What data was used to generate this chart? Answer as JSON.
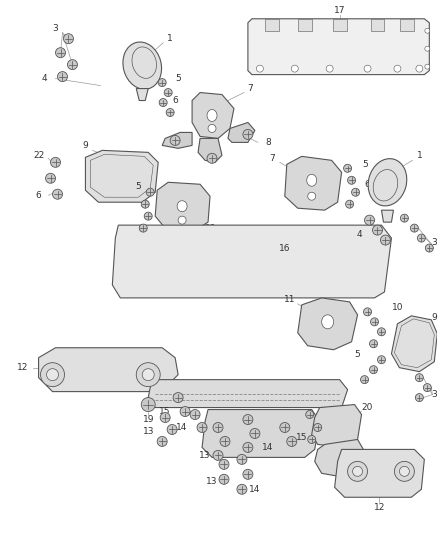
{
  "bg_color": "#ffffff",
  "line_color": "#555555",
  "label_color": "#333333",
  "figsize": [
    4.38,
    5.33
  ],
  "dpi": 100,
  "lw": 0.8,
  "part_face": "#e8e8e8",
  "part_face2": "#d4d4d4",
  "bolt_face": "#c8c8c8"
}
